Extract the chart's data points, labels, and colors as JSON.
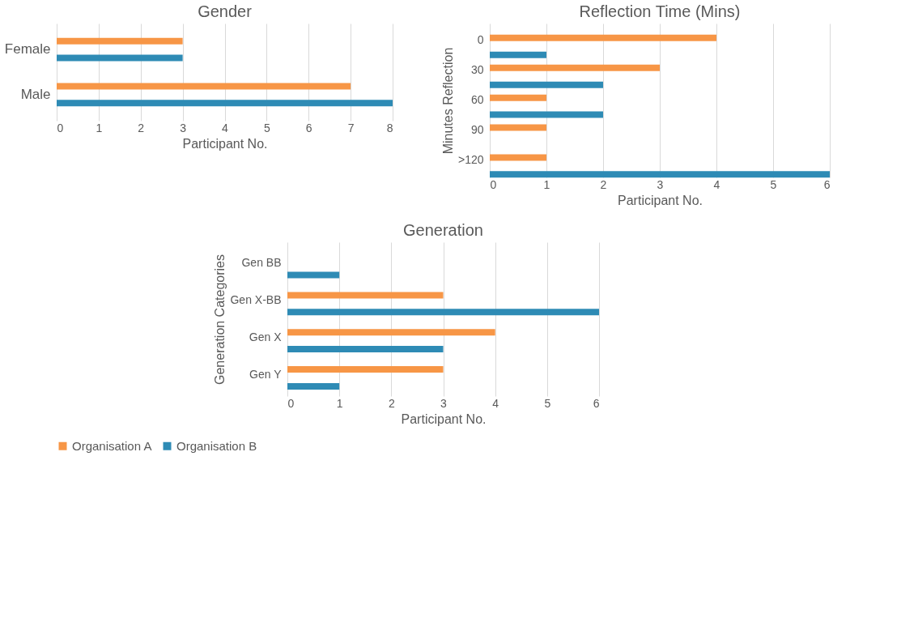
{
  "chart_data": [
    {
      "type": "bar",
      "orientation": "horizontal",
      "title": "Gender",
      "xlabel": "Participant No.",
      "categories": [
        "Female",
        "Male"
      ],
      "series": [
        {
          "name": "Organisation A",
          "color": "#f79646",
          "values": [
            3,
            7
          ]
        },
        {
          "name": "Organisation B",
          "color": "#2e8bb5",
          "values": [
            3,
            8
          ]
        }
      ],
      "xlim": [
        0,
        8
      ],
      "xticks": [
        0,
        1,
        2,
        3,
        4,
        5,
        6,
        7,
        8
      ],
      "grid": "x",
      "legend": "bottom"
    },
    {
      "type": "bar",
      "orientation": "horizontal",
      "title": "Reflection Time (Mins)",
      "xlabel": "Participant No.",
      "ylabel": "Minutes  Reflection",
      "categories": [
        "0",
        "30",
        "60",
        "90",
        ">120"
      ],
      "series": [
        {
          "name": "Organisation A",
          "color": "#f79646",
          "values": [
            4,
            3,
            1,
            1,
            1
          ]
        },
        {
          "name": "Organisation B",
          "color": "#2e8bb5",
          "values": [
            1,
            2,
            2,
            null,
            6
          ]
        }
      ],
      "xlim": [
        0,
        6
      ],
      "xticks": [
        0,
        1,
        2,
        3,
        4,
        5,
        6
      ],
      "grid": "x",
      "legend": "bottom"
    },
    {
      "type": "bar",
      "orientation": "horizontal",
      "title": "Generation",
      "xlabel": "Participant No.",
      "ylabel": "Generation Categories",
      "categories": [
        "Gen BB",
        "Gen X-BB",
        "Gen X",
        "Gen Y"
      ],
      "series": [
        {
          "name": "Organisation A",
          "color": "#f79646",
          "values": [
            null,
            3,
            4,
            3
          ]
        },
        {
          "name": "Organisation B",
          "color": "#2e8bb5",
          "values": [
            1,
            6,
            3,
            1
          ]
        }
      ],
      "xlim": [
        0,
        6
      ],
      "xticks": [
        0,
        1,
        2,
        3,
        4,
        5,
        6
      ],
      "grid": "x",
      "legend": "bottom"
    }
  ]
}
